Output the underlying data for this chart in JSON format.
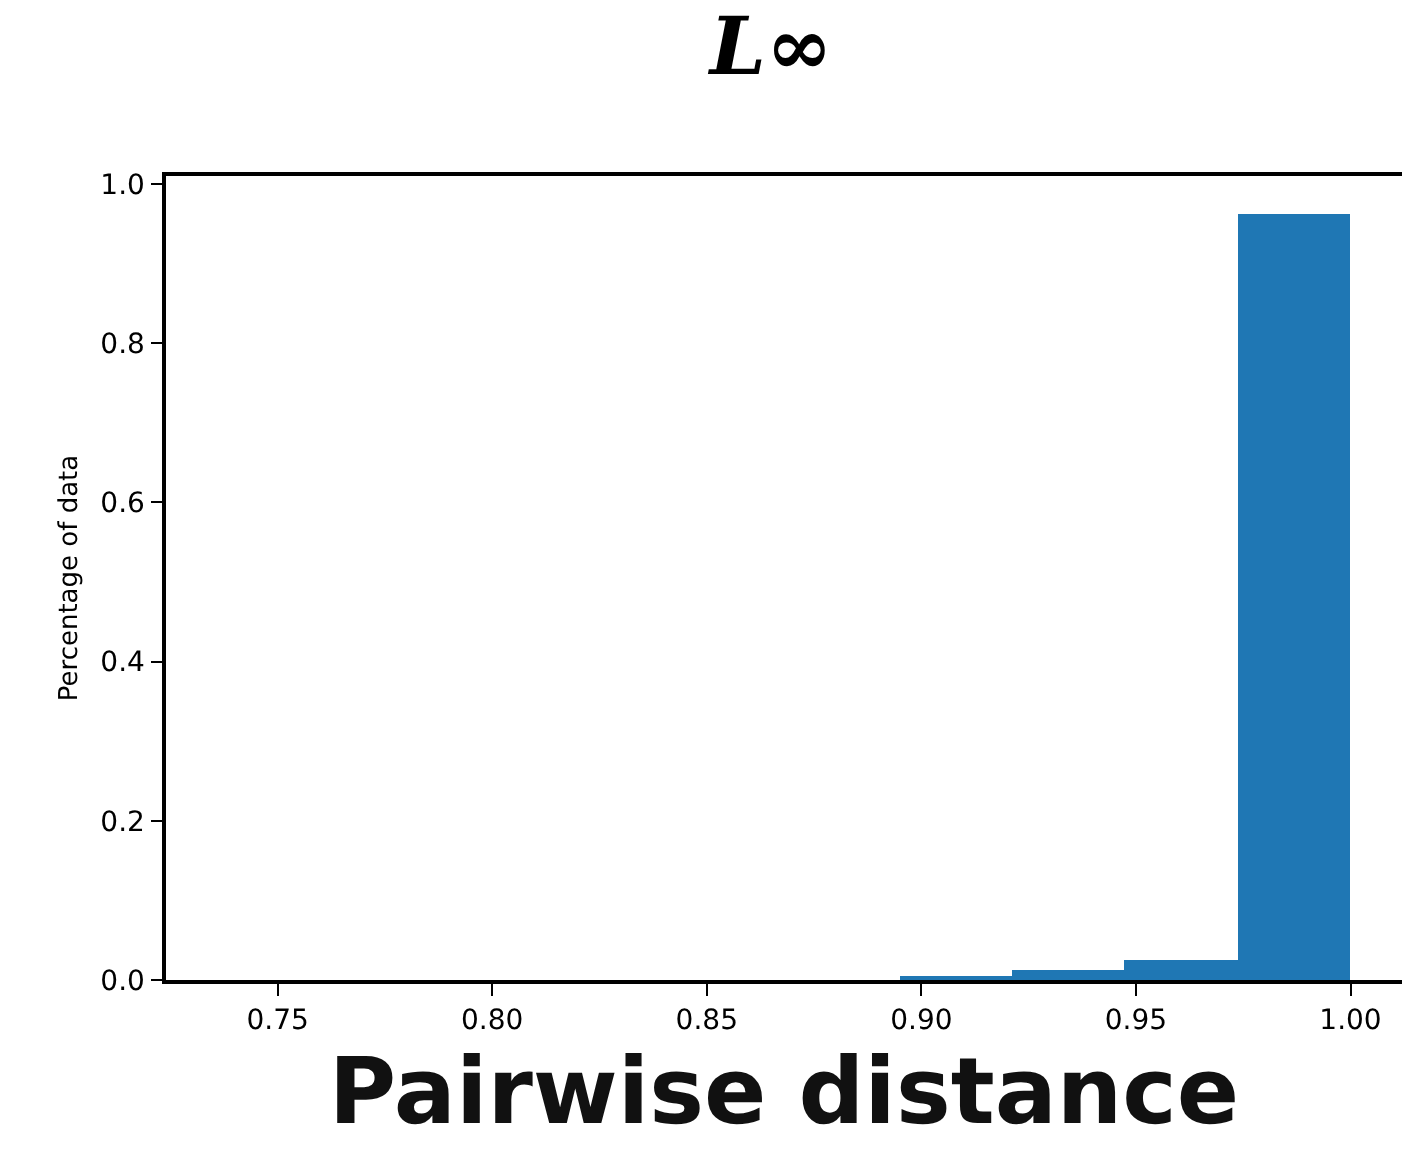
{
  "chart_data": {
    "type": "histogram",
    "title": "L∞",
    "xlabel": "Pairwise distance",
    "ylabel": "Percentage of data",
    "bins": [
      0.895,
      0.921,
      0.947,
      0.974,
      1.0
    ],
    "values": [
      0.003,
      0.012,
      0.024,
      0.962
    ],
    "color": "#1f77b4",
    "xlim": [
      0.724,
      1.012
    ],
    "xticks": [
      {
        "value": 0.75,
        "label": "0.75"
      },
      {
        "value": 0.8,
        "label": "0.80"
      },
      {
        "value": 0.85,
        "label": "0.85"
      },
      {
        "value": 0.9,
        "label": "0.90"
      },
      {
        "value": 0.95,
        "label": "0.95"
      },
      {
        "value": 1.0,
        "label": "1.00"
      }
    ],
    "ylim": [
      0,
      1.01
    ],
    "yticks": [
      {
        "value": 0,
        "label": "0.0"
      },
      {
        "value": 0.2,
        "label": "0.2"
      },
      {
        "value": 0.4,
        "label": "0.4"
      },
      {
        "value": 0.6,
        "label": "0.6"
      },
      {
        "value": 0.8,
        "label": "0.8"
      },
      {
        "value": 1.0,
        "label": "1.0"
      }
    ],
    "grid": false,
    "legend": false
  }
}
